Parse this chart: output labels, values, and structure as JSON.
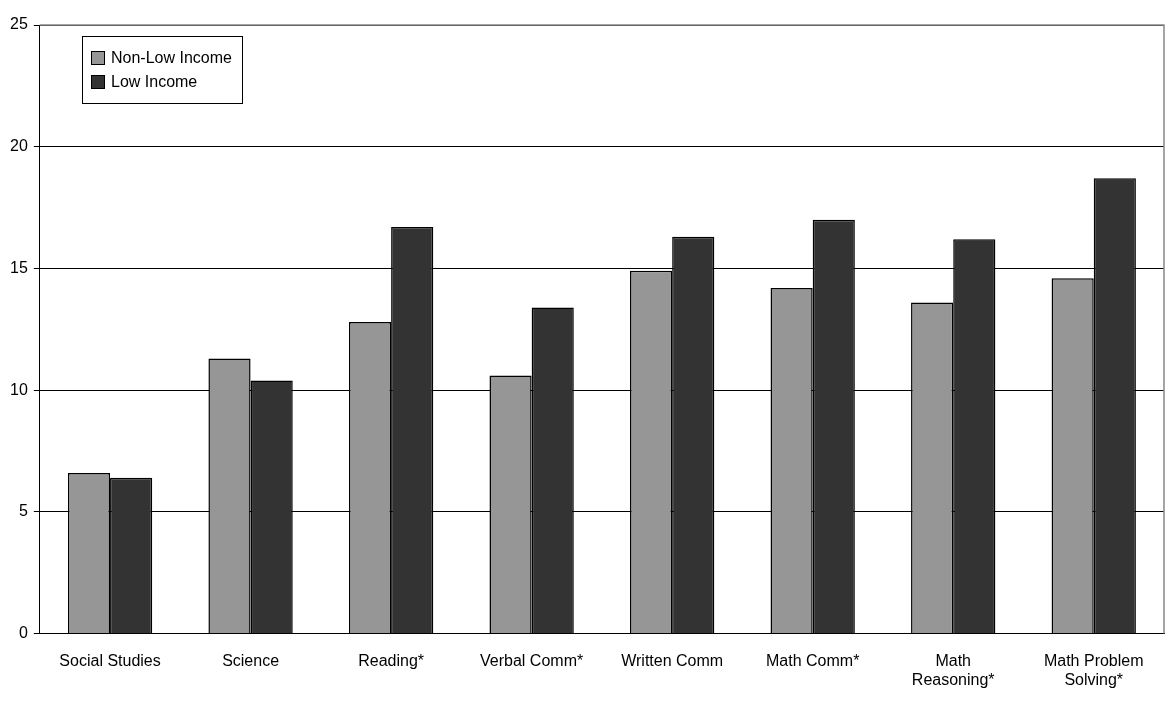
{
  "chart_data": {
    "type": "bar",
    "categories": [
      "Social Studies",
      "Science",
      "Reading*",
      "Verbal Comm*",
      "Written Comm",
      "Math Comm*",
      "Math Reasoning*",
      "Math Problem Solving*"
    ],
    "series": [
      {
        "name": "Non-Low Income",
        "color": "#969696",
        "values": [
          6.6,
          11.3,
          12.8,
          10.6,
          14.9,
          14.2,
          13.6,
          14.6
        ]
      },
      {
        "name": "Low Income",
        "color": "#333333",
        "values": [
          6.4,
          10.4,
          16.7,
          13.4,
          16.3,
          17.0,
          16.2,
          18.7
        ]
      }
    ],
    "ylim": [
      0,
      25
    ],
    "yticks": [
      0,
      5,
      10,
      15,
      20,
      25
    ],
    "grid": "y",
    "legend": "top left"
  }
}
